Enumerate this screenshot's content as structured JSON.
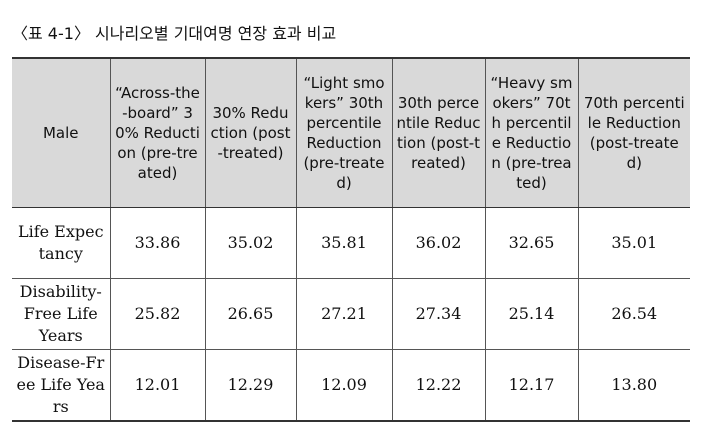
{
  "caption": "〈표 4-1〉 시나리오별 기대여명 연장 효과 비교",
  "table": {
    "header": [
      "Male",
      "“Across-the-board” 30% Reduction (pre-treated)",
      "30% Reduction (post-treated)",
      "“Light smokers” 30th percentile Reduction (pre-treated)",
      "30th percentile Reduction (post-treated)",
      "“Heavy smokers” 70th percentile Reduction (pre-treated)",
      "70th percentile Reduction (post-treated)"
    ],
    "rows": [
      [
        "Life Expectancy",
        "33.86",
        "35.02",
        "35.81",
        "36.02",
        "32.65",
        "35.01"
      ],
      [
        "Disability-Free Life Years",
        "25.82",
        "26.65",
        "27.21",
        "27.34",
        "25.14",
        "26.54"
      ],
      [
        "Disease-Free Life Years",
        "12.01",
        "12.29",
        "12.09",
        "12.22",
        "12.17",
        "13.80"
      ]
    ]
  }
}
